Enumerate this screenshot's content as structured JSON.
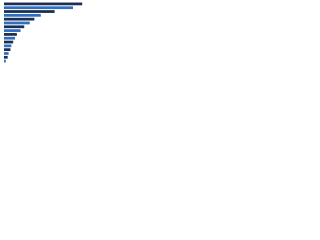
{
  "chart_data": {
    "type": "bar",
    "orientation": "horizontal",
    "categories": [
      null,
      null,
      null,
      null,
      null,
      null,
      null,
      null
    ],
    "series": [
      {
        "color": "#1b2d52",
        "values": [
          85,
          55,
          33,
          22,
          14,
          10,
          7,
          4
        ]
      },
      {
        "color": "#2e6fc0",
        "values": [
          75,
          40,
          28,
          18,
          12,
          8,
          5,
          2
        ]
      }
    ],
    "xlim": [
      0,
      100
    ]
  }
}
